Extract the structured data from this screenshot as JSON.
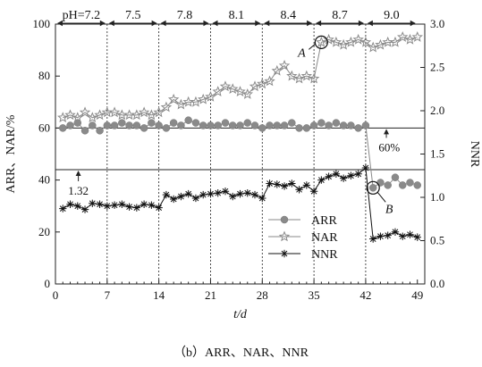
{
  "caption": "（b）ARR、NAR、NNR",
  "chart_data": {
    "type": "line",
    "x": [
      1,
      2,
      3,
      4,
      5,
      6,
      7,
      8,
      9,
      10,
      11,
      12,
      13,
      14,
      15,
      16,
      17,
      18,
      19,
      20,
      21,
      22,
      23,
      24,
      25,
      26,
      27,
      28,
      29,
      30,
      31,
      32,
      33,
      34,
      35,
      36,
      37,
      38,
      39,
      40,
      41,
      42,
      43,
      44,
      45,
      46,
      47,
      48,
      49
    ],
    "xlabel": "t/d",
    "ylabel_left": "ARR、NAR/%",
    "ylabel_right": "NNR",
    "x_ticks": [
      0,
      7,
      14,
      21,
      28,
      35,
      42,
      49
    ],
    "xlim": [
      0,
      50
    ],
    "y_left_ticks": [
      0,
      20,
      40,
      60,
      80,
      100
    ],
    "y_left_lim": [
      0,
      100
    ],
    "y_right_ticks": [
      "0.0",
      "0.5",
      "1.0",
      "1.5",
      "2.0",
      "2.5",
      "3.0"
    ],
    "y_right_lim": [
      0,
      3
    ],
    "ph_labels": [
      "pH=7.2",
      "7.5",
      "7.8",
      "8.1",
      "8.4",
      "8.7",
      "9.0"
    ],
    "ph_boundaries": [
      7,
      14,
      21,
      28,
      35,
      42
    ],
    "series": [
      {
        "name": "ARR",
        "axis": "left",
        "marker": "circle",
        "values": [
          60,
          61,
          62,
          59,
          61,
          59,
          61,
          61,
          62,
          61,
          61,
          60,
          62,
          61,
          60,
          62,
          61,
          63,
          62,
          61,
          61,
          61,
          62,
          61,
          61,
          62,
          61,
          60,
          61,
          61,
          61,
          62,
          60,
          60,
          61,
          62,
          61,
          62,
          61,
          61,
          60,
          61,
          37,
          39,
          38,
          41,
          38,
          39,
          38
        ]
      },
      {
        "name": "NAR",
        "axis": "left",
        "marker": "star",
        "values": [
          64,
          65,
          64,
          66,
          64,
          65,
          66,
          66,
          65,
          65,
          65,
          66,
          65,
          66,
          68,
          71,
          69,
          70,
          70,
          71,
          72,
          74,
          76,
          75,
          74,
          73,
          76,
          77,
          78,
          82,
          84,
          80,
          79,
          80,
          79,
          93,
          94,
          93,
          92,
          93,
          94,
          93,
          91,
          92,
          93,
          93,
          95,
          94,
          95
        ]
      },
      {
        "name": "NNR",
        "axis": "right",
        "marker": "asterisk",
        "values": [
          0.87,
          0.92,
          0.9,
          0.86,
          0.93,
          0.92,
          0.9,
          0.91,
          0.92,
          0.89,
          0.88,
          0.92,
          0.91,
          0.88,
          1.03,
          0.98,
          1.01,
          1.04,
          0.99,
          1.03,
          1.04,
          1.05,
          1.07,
          1.01,
          1.04,
          1.05,
          1.03,
          0.99,
          1.16,
          1.15,
          1.13,
          1.16,
          1.09,
          1.14,
          1.07,
          1.2,
          1.24,
          1.27,
          1.22,
          1.25,
          1.27,
          1.34,
          0.52,
          0.55,
          0.56,
          0.6,
          0.55,
          0.57,
          0.54
        ]
      }
    ],
    "reference_lines": [
      {
        "label": "60%",
        "axis": "left",
        "value": 60
      },
      {
        "label": "1.32",
        "axis": "right",
        "value": 1.32
      }
    ],
    "annotations": [
      {
        "label": "A",
        "series": "NAR",
        "x": 36
      },
      {
        "label": "B",
        "series": "ARR",
        "x": 43
      }
    ],
    "legend_position": "bottom-right",
    "grid": false
  }
}
